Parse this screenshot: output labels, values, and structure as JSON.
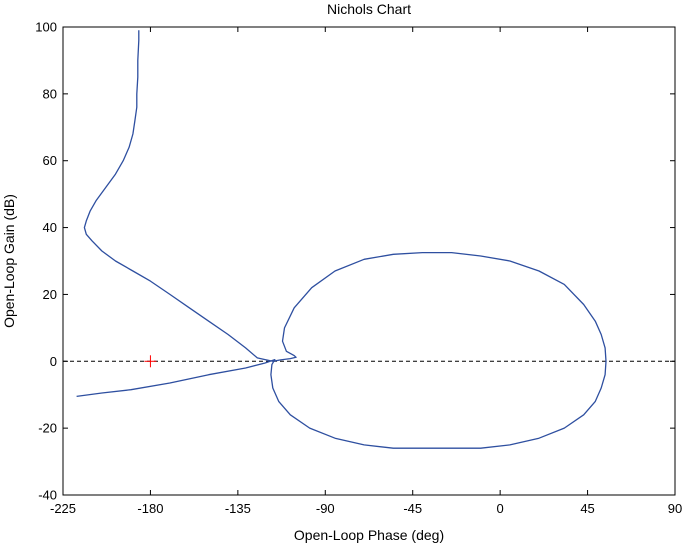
{
  "chart_data": {
    "type": "line",
    "title": "Nichols Chart",
    "xlabel": "Open-Loop Phase (deg)",
    "ylabel": "Open-Loop Gain (dB)",
    "xlim": [
      -225,
      90
    ],
    "ylim": [
      -40,
      100
    ],
    "xticks": [
      -225,
      -180,
      -135,
      -90,
      -45,
      0,
      45,
      90
    ],
    "xtick_labels": [
      "-225",
      "-180",
      "-135",
      "-90",
      "-45",
      "0",
      "45",
      "90"
    ],
    "yticks": [
      -40,
      -20,
      0,
      20,
      40,
      60,
      80,
      100
    ],
    "ytick_labels": [
      "-40",
      "-20",
      "0",
      "20",
      "40",
      "60",
      "80",
      "100"
    ],
    "grid": false,
    "reference_line": {
      "y": 0,
      "style": "dashed",
      "color": "#000000"
    },
    "critical_point": {
      "x": -180,
      "y": 0,
      "marker": "+",
      "color": "#ff0000"
    },
    "series": [
      {
        "color": "#2e4fa0",
        "points": [
          [
            -186,
            99
          ],
          [
            -186,
            96
          ],
          [
            -186.5,
            90
          ],
          [
            -186.5,
            85
          ],
          [
            -187,
            80
          ],
          [
            -187,
            76
          ],
          [
            -188,
            72
          ],
          [
            -189,
            68
          ],
          [
            -191,
            64
          ],
          [
            -194,
            60
          ],
          [
            -198,
            56
          ],
          [
            -203,
            52
          ],
          [
            -208,
            48
          ],
          [
            -211,
            45
          ],
          [
            -213,
            42
          ],
          [
            -214,
            40
          ],
          [
            -213,
            38
          ],
          [
            -210,
            36
          ],
          [
            -205,
            33
          ],
          [
            -198,
            30
          ],
          [
            -189,
            27
          ],
          [
            -180,
            24
          ],
          [
            -170,
            20
          ],
          [
            -160,
            16
          ],
          [
            -150,
            12
          ],
          [
            -140,
            8
          ],
          [
            -131,
            4
          ],
          [
            -125,
            1
          ],
          [
            -121,
            0.5
          ],
          [
            -117,
            0
          ],
          [
            -113,
            0.4
          ],
          [
            -108,
            0.8
          ],
          [
            -105,
            1.2
          ],
          [
            -106,
            1.7
          ],
          [
            -110,
            3
          ],
          [
            -112,
            6
          ],
          [
            -111,
            10
          ],
          [
            -106,
            16
          ],
          [
            -97,
            22
          ],
          [
            -85,
            27
          ],
          [
            -70,
            30.5
          ],
          [
            -55,
            32
          ],
          [
            -40,
            32.5
          ],
          [
            -25,
            32.5
          ],
          [
            -10,
            31.5
          ],
          [
            5,
            30
          ],
          [
            20,
            27
          ],
          [
            33,
            23
          ],
          [
            43,
            17
          ],
          [
            49,
            12
          ],
          [
            52,
            8
          ],
          [
            54,
            4
          ],
          [
            54.5,
            0
          ],
          [
            54,
            -4
          ],
          [
            52,
            -8
          ],
          [
            49,
            -12
          ],
          [
            43,
            -16
          ],
          [
            33,
            -20
          ],
          [
            20,
            -23
          ],
          [
            5,
            -25
          ],
          [
            -10,
            -26
          ],
          [
            -25,
            -26
          ],
          [
            -40,
            -26
          ],
          [
            -55,
            -26
          ],
          [
            -70,
            -25
          ],
          [
            -85,
            -23
          ],
          [
            -98,
            -20
          ],
          [
            -108,
            -16
          ],
          [
            -114,
            -12
          ],
          [
            -117,
            -8
          ],
          [
            -118,
            -4
          ],
          [
            -117.5,
            -1
          ],
          [
            -116,
            0.5
          ],
          [
            -121,
            -0.5
          ],
          [
            -131,
            -2
          ],
          [
            -150,
            -4
          ],
          [
            -170,
            -6.5
          ],
          [
            -190,
            -8.5
          ],
          [
            -205,
            -9.5
          ],
          [
            -218,
            -10.5
          ]
        ]
      }
    ]
  }
}
